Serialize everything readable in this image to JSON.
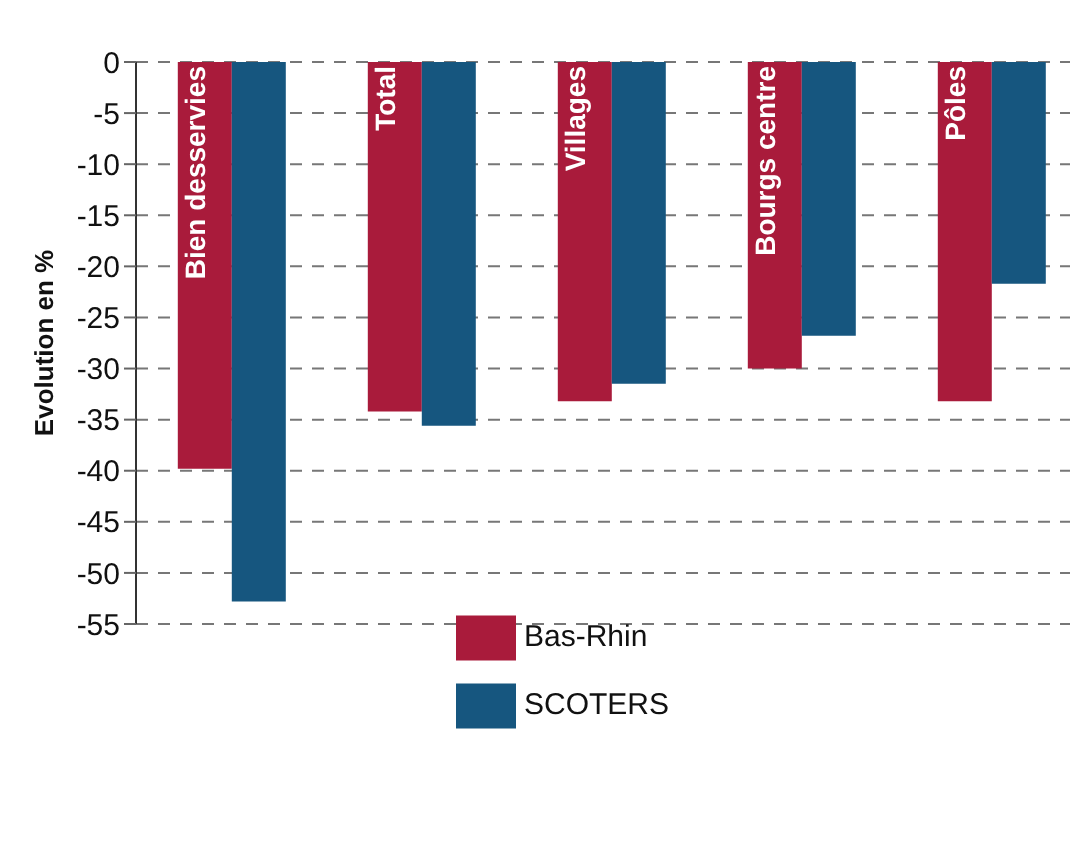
{
  "chart_data": {
    "type": "bar",
    "ylabel": "Evolution en %",
    "categories": [
      "Bien desservies",
      "Total",
      "Villages",
      "Bourgs centre",
      "Pôles"
    ],
    "series": [
      {
        "name": "Bas-Rhin",
        "color": "#a91b3b",
        "values": [
          -39.8,
          -34.2,
          -33.2,
          -30,
          -33.2
        ]
      },
      {
        "name": "SCOTERS",
        "color": "#16567f",
        "values": [
          -52.8,
          -35.6,
          -31.5,
          -26.8,
          -21.7
        ]
      }
    ],
    "ylim": [
      -55,
      0
    ],
    "yticks": [
      0,
      -5,
      -10,
      -15,
      -20,
      -25,
      -30,
      -35,
      -40,
      -45,
      -50,
      -55
    ],
    "grid": "y",
    "legend": "bottom"
  }
}
